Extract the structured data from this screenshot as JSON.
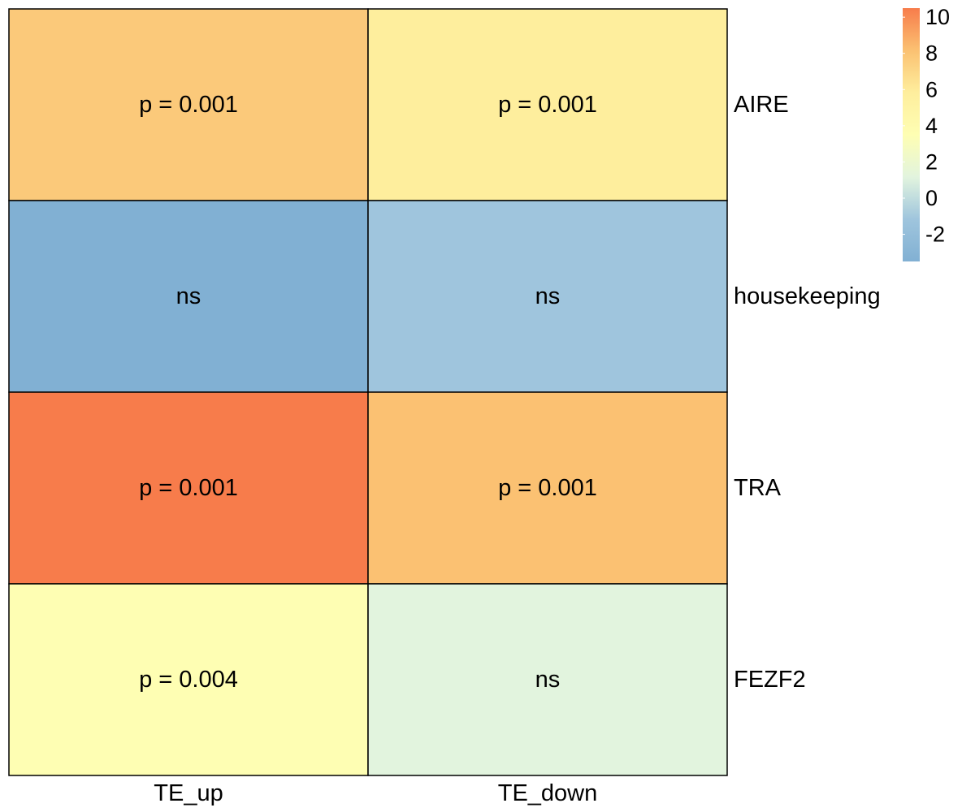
{
  "chart_data": {
    "type": "heatmap",
    "title": "",
    "columns": [
      "TE_up",
      "TE_down"
    ],
    "rows": [
      "AIRE",
      "housekeeping",
      "TRA",
      "FEZF2"
    ],
    "values": [
      [
        7.0,
        5.0
      ],
      [
        -2.8,
        -1.5
      ],
      [
        9.8,
        6.8
      ],
      [
        3.9,
        1.6
      ]
    ],
    "cell_labels": [
      [
        "p = 0.001",
        "p = 0.001"
      ],
      [
        "ns",
        "ns"
      ],
      [
        "p = 0.001",
        "p = 0.001"
      ],
      [
        "p = 0.004",
        "ns"
      ]
    ],
    "colors": [
      [
        "#FBC97A",
        "#FEEE9D"
      ],
      [
        "#81B0D3",
        "#9FC5DD"
      ],
      [
        "#F77C4B",
        "#FBC172"
      ],
      [
        "#FEFEB3",
        "#E2F4DE"
      ]
    ],
    "legend": {
      "position": "top-right",
      "min": -3.5,
      "max": 10.5,
      "ticks": [
        10,
        8,
        6,
        4,
        2,
        0,
        -2
      ],
      "tick_labels": [
        "10",
        "8",
        "6",
        "4",
        "2",
        "0",
        "-2"
      ],
      "gradient": [
        "#F77C4B",
        "#FBC172",
        "#FEEE9D",
        "#FEFEB3",
        "#E2F4DE",
        "#9FC5DD",
        "#81B0D3"
      ]
    }
  }
}
